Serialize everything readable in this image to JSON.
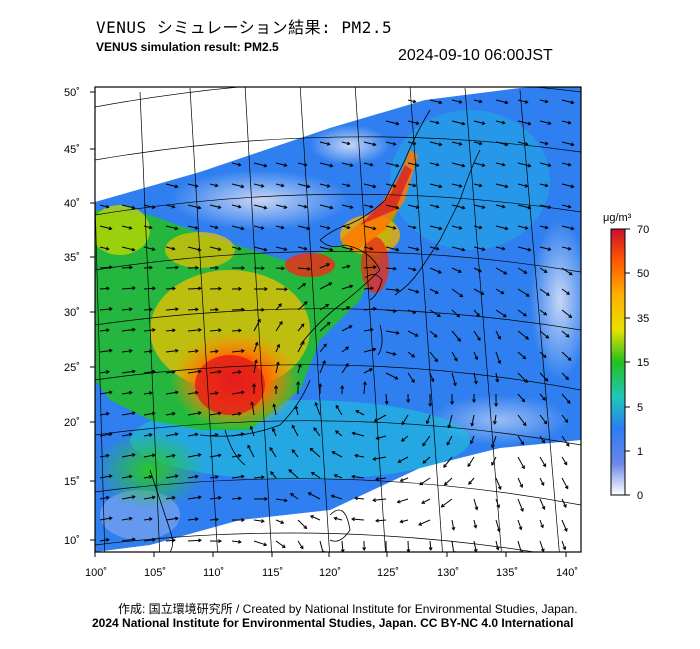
{
  "title_ja": "VENUS シミュレーション結果: PM2.5",
  "title_en": "VENUS simulation result: PM2.5",
  "timestamp": "2024-09-10 06:00JST",
  "lat_labels": [
    "50˚",
    "45˚",
    "40˚",
    "35˚",
    "30˚",
    "25˚",
    "20˚",
    "15˚",
    "10˚"
  ],
  "lon_labels": [
    "100˚",
    "105˚",
    "110˚",
    "115˚",
    "120˚",
    "125˚",
    "130˚",
    "135˚",
    "140˚"
  ],
  "colorbar": {
    "unit": "μg/m³",
    "ticks": [
      "70",
      "50",
      "35",
      "15",
      "5",
      "1",
      "0"
    ],
    "colors": [
      "#c8102e",
      "#ff5a00",
      "#ffb000",
      "#e8e000",
      "#22c01f",
      "#1fc8b8",
      "#2a7ef5",
      "#6a86e8",
      "#ffffff"
    ]
  },
  "credit_line1": "作成: 国立環境研究所 / Created by National Institute for Environmental Studies, Japan.",
  "credit_line2": "2024 National Institute for Environmental Studies, Japan. CC BY-NC 4.0 International"
}
